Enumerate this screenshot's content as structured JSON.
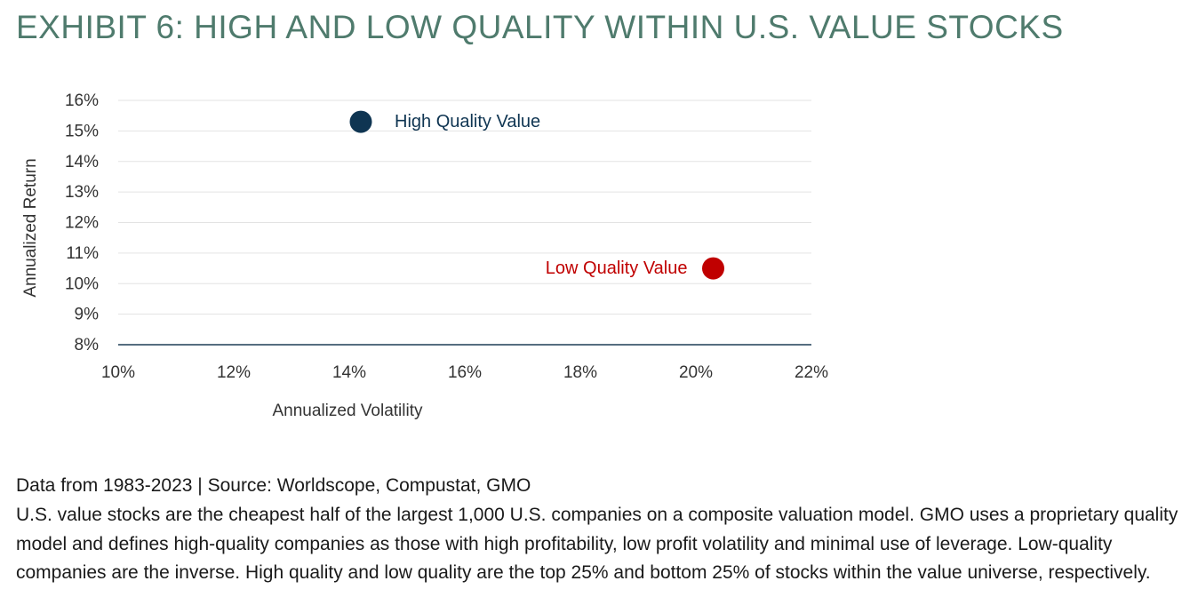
{
  "title": "EXHIBIT 6: HIGH AND LOW QUALITY WITHIN U.S. VALUE STOCKS",
  "colors": {
    "title": "#4f7b6d",
    "high_quality": "#0f3552",
    "low_quality": "#c00000",
    "axis_text": "#333333",
    "axis_label": "#3d4a58",
    "grid": "#e3e3e3",
    "baseline": "#1f3d57"
  },
  "chart_data": {
    "type": "scatter",
    "xlabel": "Annualized Volatility",
    "ylabel": "Annualized Return",
    "xlim": [
      10,
      22
    ],
    "ylim": [
      8,
      16
    ],
    "x_ticks": [
      "10%",
      "12%",
      "14%",
      "16%",
      "18%",
      "20%",
      "22%"
    ],
    "y_ticks": [
      "16%",
      "15%",
      "14%",
      "13%",
      "12%",
      "11%",
      "10%",
      "9%",
      "8%"
    ],
    "grid": "horizontal",
    "series": [
      {
        "name": "High Quality Value",
        "x": 14.2,
        "y": 15.3,
        "color": "#0f3552"
      },
      {
        "name": "Low Quality Value",
        "x": 20.3,
        "y": 10.5,
        "color": "#c00000"
      }
    ]
  },
  "footnote": {
    "source": "Data from 1983-2023 | Source: Worldscope, Compustat, GMO",
    "description": "U.S. value stocks are the cheapest half of the largest 1,000 U.S. companies on a composite valuation model. GMO uses a proprietary quality model and defines high-quality companies as those with high profitability, low profit volatility and minimal use of leverage. Low-quality companies are the inverse. High quality and low quality are the top 25% and bottom 25% of stocks within the value universe, respectively."
  }
}
